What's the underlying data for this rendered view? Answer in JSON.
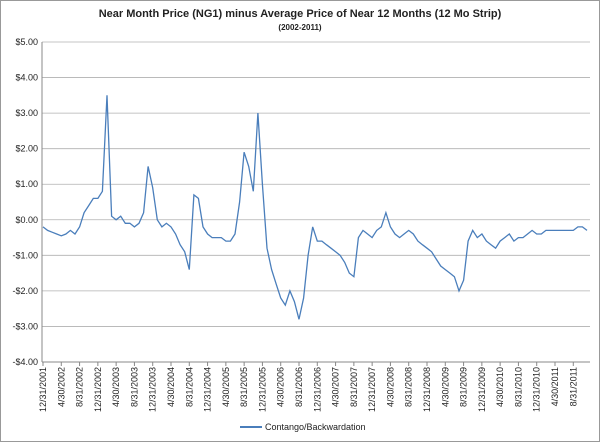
{
  "chart_data": {
    "type": "line",
    "title": "Near Month Price (NG1) minus Average Price of Near 12 Months (12 Mo Strip)",
    "subtitle": "(2002-2011)",
    "categories": [
      "12/31/2001",
      null,
      null,
      null,
      "4/30/2002",
      null,
      null,
      null,
      "8/31/2002",
      null,
      null,
      null,
      "12/31/2002",
      null,
      null,
      null,
      "4/30/2003",
      null,
      null,
      null,
      "8/31/2003",
      null,
      null,
      null,
      "12/31/2003",
      null,
      null,
      null,
      "4/30/2004",
      null,
      null,
      null,
      "8/31/2004",
      null,
      null,
      null,
      "12/31/2004",
      null,
      null,
      null,
      "4/30/2005",
      null,
      null,
      null,
      "8/31/2005",
      null,
      null,
      null,
      "12/31/2005",
      null,
      null,
      null,
      "4/30/2006",
      null,
      null,
      null,
      "8/31/2006",
      null,
      null,
      null,
      "12/31/2006",
      null,
      null,
      null,
      "4/30/2007",
      null,
      null,
      null,
      "8/31/2007",
      null,
      null,
      null,
      "12/31/2007",
      null,
      null,
      null,
      "4/30/2008",
      null,
      null,
      null,
      "8/31/2008",
      null,
      null,
      null,
      "12/31/2008",
      null,
      null,
      null,
      "4/30/2009",
      null,
      null,
      null,
      "8/31/2009",
      null,
      null,
      null,
      "12/31/2009",
      null,
      null,
      null,
      "4/30/2010",
      null,
      null,
      null,
      "8/31/2010",
      null,
      null,
      null,
      "12/31/2010",
      null,
      null,
      null,
      "4/30/2011",
      null,
      null,
      null,
      "8/31/2011",
      null,
      null,
      null
    ],
    "series": [
      {
        "name": "Contango/Backwardation",
        "color": "#4a7ebb",
        "values": [
          -0.2,
          -0.3,
          -0.35,
          -0.4,
          -0.45,
          -0.4,
          -0.3,
          -0.4,
          -0.2,
          0.2,
          0.4,
          0.6,
          0.6,
          0.8,
          3.5,
          0.1,
          0.0,
          0.1,
          -0.1,
          -0.1,
          -0.2,
          -0.1,
          0.2,
          1.5,
          0.9,
          0.0,
          -0.2,
          -0.1,
          -0.2,
          -0.4,
          -0.7,
          -0.9,
          -1.4,
          0.7,
          0.6,
          -0.2,
          -0.4,
          -0.5,
          -0.5,
          -0.5,
          -0.6,
          -0.6,
          -0.4,
          0.5,
          1.9,
          1.5,
          0.8,
          3.0,
          1.0,
          -0.8,
          -1.4,
          -1.8,
          -2.2,
          -2.4,
          -2.0,
          -2.3,
          -2.8,
          -2.2,
          -1.0,
          -0.2,
          -0.6,
          -0.6,
          -0.7,
          -0.8,
          -0.9,
          -1.0,
          -1.2,
          -1.5,
          -1.6,
          -0.5,
          -0.3,
          -0.4,
          -0.5,
          -0.3,
          -0.2,
          0.2,
          -0.2,
          -0.4,
          -0.5,
          -0.4,
          -0.3,
          -0.4,
          -0.6,
          -0.7,
          -0.8,
          -0.9,
          -1.1,
          -1.3,
          -1.4,
          -1.5,
          -1.6,
          -2.0,
          -1.7,
          -0.6,
          -0.3,
          -0.5,
          -0.4,
          -0.6,
          -0.7,
          -0.8,
          -0.6,
          -0.5,
          -0.4,
          -0.6,
          -0.5,
          -0.5,
          -0.4,
          -0.3,
          -0.4,
          -0.4,
          -0.3,
          -0.3,
          -0.3,
          -0.3,
          -0.3,
          -0.3,
          -0.3,
          -0.2,
          -0.2,
          -0.3
        ]
      }
    ],
    "ylim": [
      -4,
      5
    ],
    "yticks": [
      {
        "value": -4,
        "label": "-$4.00"
      },
      {
        "value": -3,
        "label": "-$3.00"
      },
      {
        "value": -2,
        "label": "-$2.00"
      },
      {
        "value": -1,
        "label": "-$1.00"
      },
      {
        "value": 0,
        "label": "$0.00"
      },
      {
        "value": 1,
        "label": "$1.00"
      },
      {
        "value": 2,
        "label": "$2.00"
      },
      {
        "value": 3,
        "label": "$3.00"
      },
      {
        "value": 4,
        "label": "$4.00"
      },
      {
        "value": 5,
        "label": "$5.00"
      }
    ],
    "grid": true,
    "legend": "bottom"
  }
}
